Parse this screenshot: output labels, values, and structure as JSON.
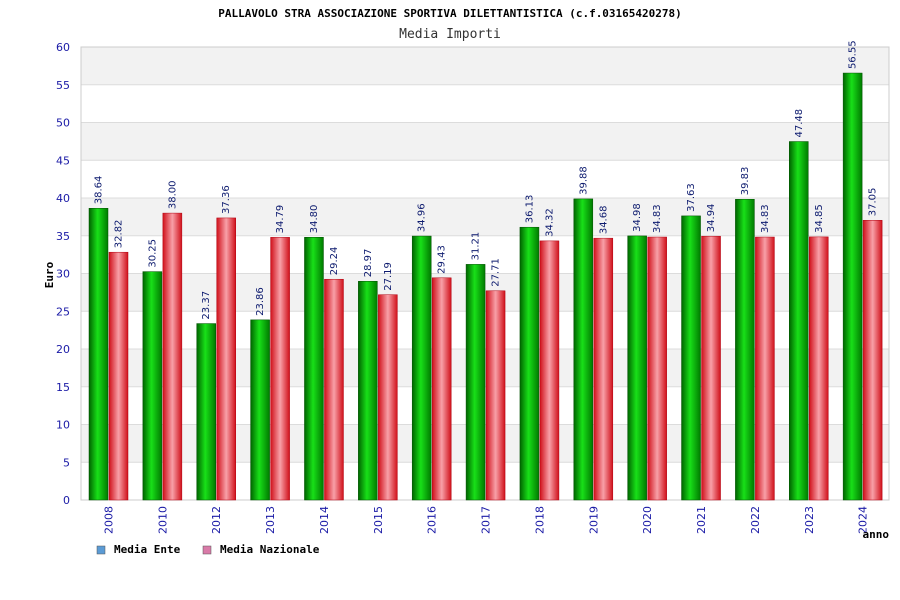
{
  "chart_data": {
    "type": "bar",
    "title": "PALLAVOLO STRA ASSOCIAZIONE SPORTIVA DILETTANTISTICA (c.f.03165420278)",
    "subtitle": "Media Importi",
    "ylabel": "Euro",
    "xlabel": "anno",
    "ylim": [
      0,
      60
    ],
    "ytick_step": 5,
    "grid": true,
    "legend_position": "bottom-left",
    "categories": [
      "2008",
      "2010",
      "2012",
      "2013",
      "2014",
      "2015",
      "2016",
      "2017",
      "2018",
      "2019",
      "2020",
      "2021",
      "2022",
      "2023",
      "2024"
    ],
    "series": [
      {
        "name": "Media Ente",
        "color": "#00b000",
        "legend_color": "#5b9bd5",
        "values": [
          38.64,
          30.25,
          23.37,
          23.86,
          34.8,
          28.97,
          34.96,
          31.21,
          36.13,
          39.88,
          34.98,
          37.63,
          39.83,
          47.48,
          56.55
        ],
        "labels": [
          "38.64",
          "30.25",
          "23.37",
          "23.86",
          "34.80",
          "28.97",
          "34.96",
          "31.21",
          "36.13",
          "39.88",
          "34.98",
          "37.63",
          "39.83",
          "47.48",
          "56.55"
        ]
      },
      {
        "name": "Media Nazionale",
        "color": "#e8202a",
        "legend_color": "#d97aa8",
        "values": [
          32.82,
          38.0,
          37.36,
          34.79,
          29.24,
          27.19,
          29.43,
          27.71,
          34.32,
          34.68,
          34.83,
          34.94,
          34.83,
          34.85,
          37.05
        ],
        "labels": [
          "32.82",
          "38.00",
          "37.36",
          "34.79",
          "29.24",
          "27.19",
          "29.43",
          "27.71",
          "34.32",
          "34.68",
          "34.83",
          "34.94",
          "34.83",
          "34.85",
          "37.05"
        ]
      }
    ]
  }
}
